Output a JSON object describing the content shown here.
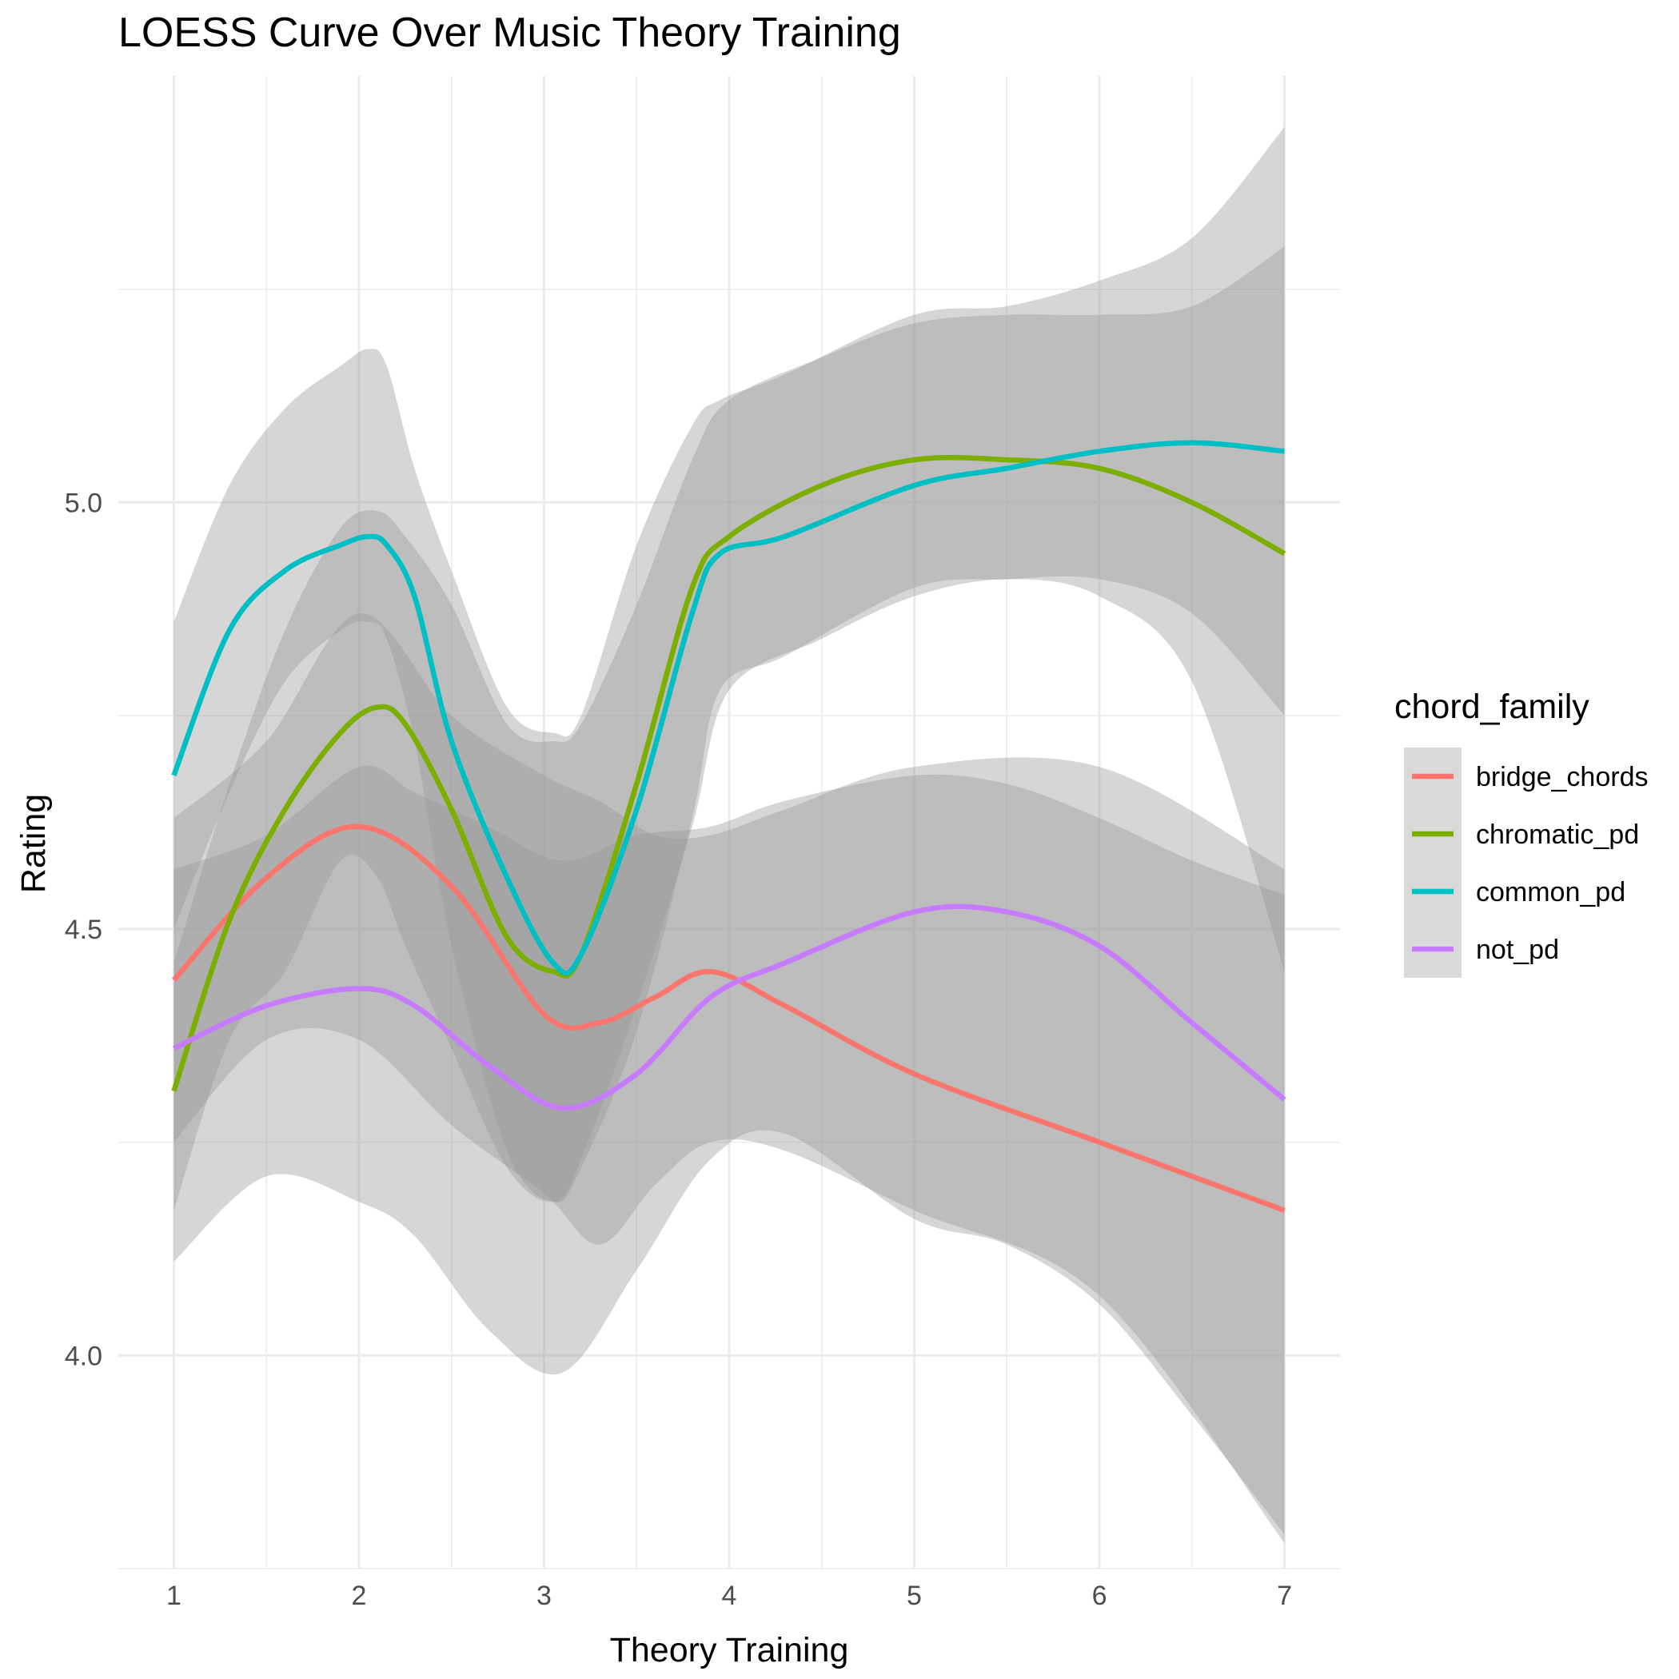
{
  "chart_data": {
    "type": "line",
    "title": "LOESS Curve Over Music Theory Training",
    "xlabel": "Theory Training",
    "ylabel": "Rating",
    "xlim": [
      0.7,
      7.3
    ],
    "ylim": [
      3.75,
      5.5
    ],
    "x_ticks": [
      1,
      2,
      3,
      4,
      5,
      6,
      7
    ],
    "x_tick_labels": [
      "1",
      "2",
      "3",
      "4",
      "5",
      "6",
      "7"
    ],
    "y_ticks": [
      4.0,
      4.5,
      5.0
    ],
    "y_tick_labels": [
      "4.0",
      "4.5",
      "5.0"
    ],
    "grid": true,
    "legend": {
      "title": "chord_family",
      "position": "right"
    },
    "series": [
      {
        "name": "bridge_chords",
        "color": "#F8766D",
        "x": [
          1,
          1.5,
          2,
          2.5,
          3,
          3.3,
          3.6,
          3.9,
          4.3,
          5,
          6,
          7
        ],
        "y": [
          4.44,
          4.56,
          4.62,
          4.55,
          4.4,
          4.39,
          4.42,
          4.45,
          4.41,
          4.33,
          4.25,
          4.17
        ],
        "ci_lower": [
          4.25,
          4.37,
          4.37,
          4.27,
          4.19,
          4.13,
          4.2,
          4.25,
          4.24,
          4.17,
          4.07,
          3.78
        ],
        "ci_upper": [
          4.63,
          4.72,
          4.87,
          4.75,
          4.68,
          4.65,
          4.61,
          4.61,
          4.64,
          4.69,
          4.69,
          4.57
        ]
      },
      {
        "name": "chromatic_pd",
        "color": "#7CAE00",
        "x": [
          1,
          1.3,
          1.6,
          1.9,
          2.1,
          2.25,
          2.5,
          2.8,
          3.05,
          3.2,
          3.5,
          3.8,
          4.0,
          4.5,
          5,
          5.5,
          6,
          6.5,
          7
        ],
        "y": [
          4.31,
          4.51,
          4.64,
          4.73,
          4.76,
          4.74,
          4.64,
          4.49,
          4.45,
          4.47,
          4.67,
          4.9,
          4.96,
          5.02,
          5.05,
          5.05,
          5.04,
          5.0,
          4.94
        ],
        "ci_lower": [
          4.17,
          4.37,
          4.45,
          4.58,
          4.56,
          4.48,
          4.36,
          4.22,
          4.18,
          4.23,
          4.41,
          4.62,
          4.78,
          4.84,
          4.89,
          4.91,
          4.89,
          4.79,
          4.45
        ],
        "ci_upper": [
          4.46,
          4.67,
          4.85,
          4.97,
          4.99,
          4.96,
          4.88,
          4.74,
          4.72,
          4.74,
          4.88,
          5.05,
          5.12,
          5.17,
          5.21,
          5.22,
          5.22,
          5.23,
          5.3
        ]
      },
      {
        "name": "common_pd",
        "color": "#00BFC4",
        "x": [
          1,
          1.3,
          1.6,
          1.9,
          2.05,
          2.15,
          2.3,
          2.5,
          2.8,
          3.05,
          3.2,
          3.5,
          3.8,
          3.95,
          4.3,
          5,
          5.5,
          6,
          6.5,
          7
        ],
        "y": [
          4.68,
          4.85,
          4.92,
          4.95,
          4.96,
          4.95,
          4.89,
          4.72,
          4.56,
          4.46,
          4.47,
          4.64,
          4.87,
          4.94,
          4.96,
          5.02,
          5.04,
          5.06,
          5.07,
          5.06
        ],
        "ci_lower": [
          4.5,
          4.66,
          4.79,
          4.85,
          4.86,
          4.84,
          4.72,
          4.48,
          4.24,
          4.18,
          4.22,
          4.38,
          4.63,
          4.78,
          4.82,
          4.9,
          4.91,
          4.91,
          4.87,
          4.75
        ],
        "ci_upper": [
          4.86,
          5.02,
          5.11,
          5.16,
          5.18,
          5.16,
          5.04,
          4.92,
          4.76,
          4.73,
          4.75,
          4.95,
          5.09,
          5.12,
          5.15,
          5.22,
          5.23,
          5.26,
          5.31,
          5.44
        ]
      },
      {
        "name": "not_pd",
        "color": "#C77CFF",
        "x": [
          1,
          1.5,
          2,
          2.3,
          2.7,
          3.1,
          3.5,
          3.9,
          4.3,
          5,
          5.5,
          6,
          6.5,
          7
        ],
        "y": [
          4.36,
          4.41,
          4.43,
          4.41,
          4.34,
          4.29,
          4.33,
          4.42,
          4.46,
          4.52,
          4.52,
          4.48,
          4.39,
          4.3
        ],
        "ci_lower": [
          4.11,
          4.21,
          4.18,
          4.14,
          4.03,
          3.98,
          4.1,
          4.23,
          4.26,
          4.16,
          4.13,
          4.06,
          3.93,
          3.79
        ],
        "ci_upper": [
          4.57,
          4.61,
          4.69,
          4.66,
          4.62,
          4.58,
          4.61,
          4.62,
          4.65,
          4.68,
          4.67,
          4.63,
          4.58,
          4.54
        ]
      }
    ]
  }
}
